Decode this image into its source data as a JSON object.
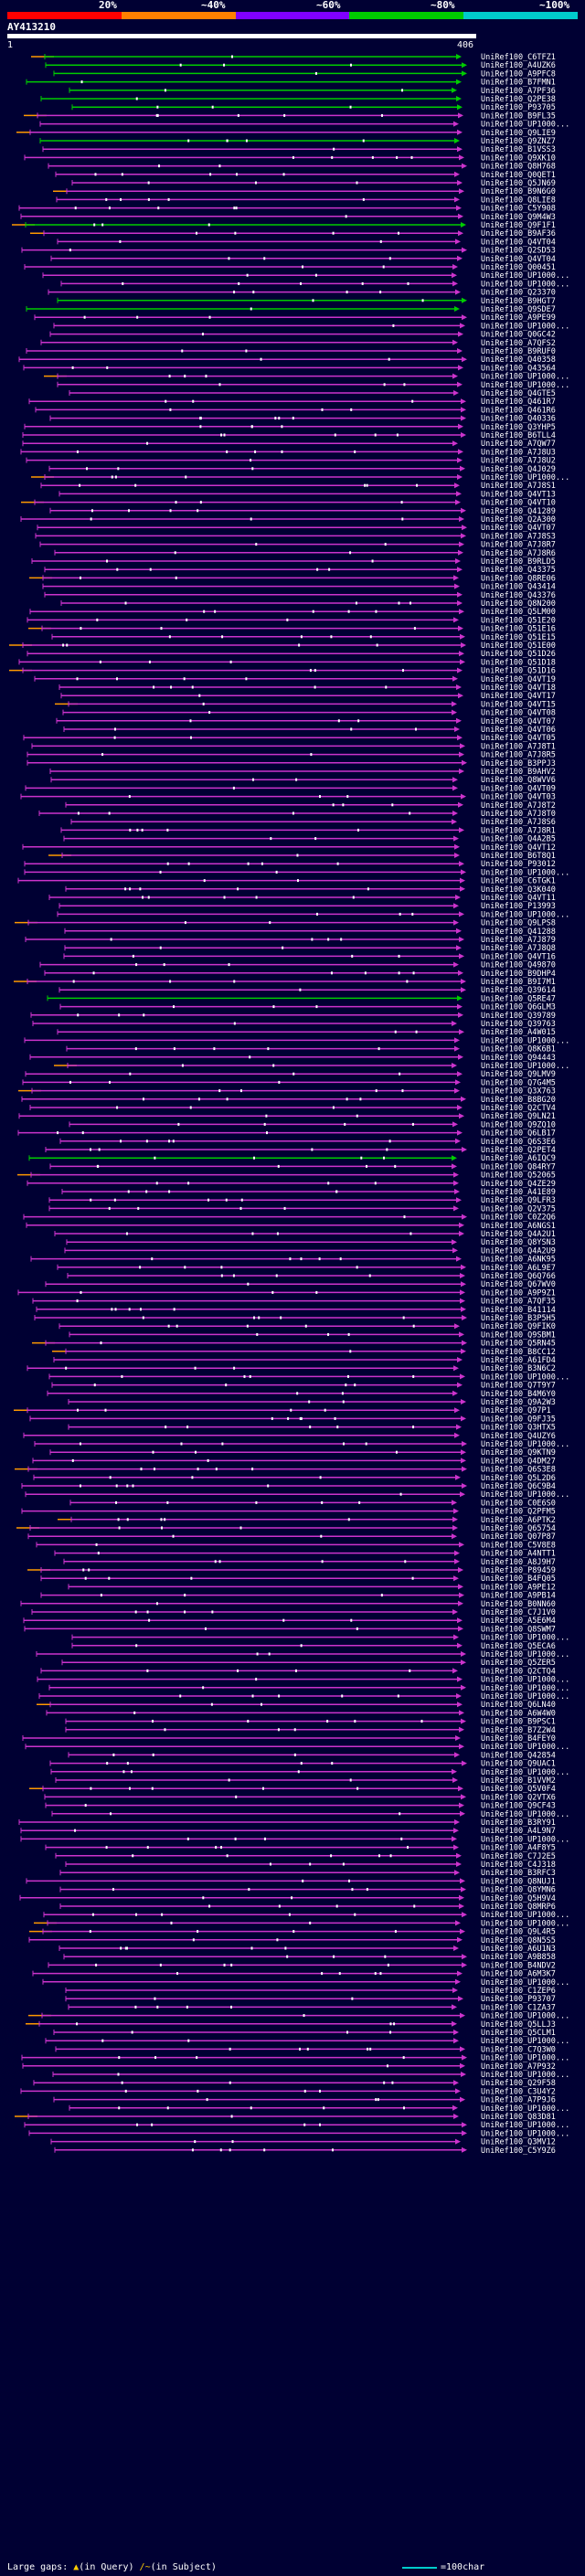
{
  "header": {
    "percent_labels": [
      "20%",
      "~40%",
      "~60%",
      "~80%",
      "~100%"
    ],
    "colors": [
      "#ff0000",
      "#ff8000",
      "#8000ff",
      "#00cc00",
      "#00cccc"
    ],
    "query_title": "AY413210",
    "scale_start": "1",
    "scale_end": "406"
  },
  "legend": {
    "large_gaps": "Large gaps:",
    "in_query": "(in Query)",
    "in_subject": "(in Subject)",
    "scale_note": "=100char"
  },
  "hits": [
    "UniRef100_C6TFZ1",
    "UniRef100_A4UZK6",
    "UniRef100_A9PFC8",
    "UniRef100_B7FMN1",
    "UniRef100_A7PF36",
    "UniRef100_Q2PE38",
    "UniRef100_P93705",
    "UniRef100_B9FL35",
    "UniRef100_UP1000...",
    "UniRef100_Q9LIE9",
    "UniRef100_Q9ZNZ7",
    "UniRef100_B1VSS3",
    "UniRef100_Q9XK10",
    "UniRef100_Q8H768",
    "UniRef100_Q0QET1",
    "UniRef100_Q5JN69",
    "UniRef100_B9N6G0",
    "UniRef100_Q8LIE8",
    "UniRef100_C5Y908",
    "UniRef100_Q9M4W3",
    "UniRef100_Q9F1F1",
    "UniRef100_B9AF36",
    "UniRef100_Q4VT04",
    "UniRef100_Q2SD53",
    "UniRef100_Q4VT04",
    "UniRef100_Q00451",
    "UniRef100_UP1000...",
    "UniRef100_UP1000...",
    "UniRef100_Q23370",
    "UniRef100_B9HGT7",
    "UniRef100_Q9SDE7",
    "UniRef100_A9PE99",
    "UniRef100_UP1000...",
    "UniRef100_Q0GC42",
    "UniRef100_A7QFS2",
    "UniRef100_B9RUF0",
    "UniRef100_Q40358",
    "UniRef100_Q43564",
    "UniRef100_UP1000...",
    "UniRef100_UP1000...",
    "UniRef100_Q4GTE5",
    "UniRef100_Q461R7",
    "UniRef100_Q461R6",
    "UniRef100_Q40336",
    "UniRef100_Q3YHP5",
    "UniRef100_B6TLL4",
    "UniRef100_A7QW77",
    "UniRef100_A7J8U3",
    "UniRef100_A7J8U2",
    "UniRef100_Q4J029",
    "UniRef100_UP1000...",
    "UniRef100_A7J8S1",
    "UniRef100_Q4VT13",
    "UniRef100_Q4VT10",
    "UniRef100_Q41289",
    "UniRef100_Q2A300",
    "UniRef100_Q4VT07",
    "UniRef100_A7J8S3",
    "UniRef100_A7J8R7",
    "UniRef100_A7J8R6",
    "UniRef100_B9RLD5",
    "UniRef100_Q43375",
    "UniRef100_Q8RE06",
    "UniRef100_Q43414",
    "UniRef100_Q43376",
    "UniRef100_Q8N200",
    "UniRef100_Q5LM00",
    "UniRef100_Q51E20",
    "UniRef100_Q51E16",
    "UniRef100_Q51E15",
    "UniRef100_Q51E00",
    "UniRef100_Q51D26",
    "UniRef100_Q51D18",
    "UniRef100_Q51D16",
    "UniRef100_Q4VT19",
    "UniRef100_Q4VT18",
    "UniRef100_Q4VT17",
    "UniRef100_Q4VT15",
    "UniRef100_Q4VT08",
    "UniRef100_Q4VT07",
    "UniRef100_Q4VT06",
    "UniRef100_Q4VT05",
    "UniRef100_A7J8T1",
    "UniRef100_A7J8R5",
    "UniRef100_B3PPJ3",
    "UniRef100_B9AHV2",
    "UniRef100_Q8WVV6",
    "UniRef100_Q4VT09",
    "UniRef100_Q4VT03",
    "UniRef100_A7J8T2",
    "UniRef100_A7J8T0",
    "UniRef100_A7J8S6",
    "UniRef100_A7J8R1",
    "UniRef100_Q4A2B5",
    "UniRef100_Q4VT12",
    "UniRef100_B6T8Q1",
    "UniRef100_P93012",
    "UniRef100_UP1000...",
    "UniRef100_C6TGK1",
    "UniRef100_Q3K040",
    "UniRef100_Q4VT11",
    "UniRef100_P13993",
    "UniRef100_UP1000...",
    "UniRef100_Q9LPS8",
    "UniRef100_Q41288",
    "UniRef100_A7J879",
    "UniRef100_A7J8Q8",
    "UniRef100_Q4VT16",
    "UniRef100_Q49870",
    "UniRef100_B9DHP4",
    "UniRef100_B9I7M1",
    "UniRef100_Q39614",
    "UniRef100_Q5RE47",
    "UniRef100_Q6GLM3",
    "UniRef100_Q39789",
    "UniRef100_Q39763",
    "UniRef100_A4W015",
    "UniRef100_UP1000...",
    "UniRef100_Q8K6B1",
    "UniRef100_Q94443",
    "UniRef100_UP1000...",
    "UniRef100_Q9LMV9",
    "UniRef100_Q7G4M5",
    "UniRef100_Q3X763",
    "UniRef100_B8BG20",
    "UniRef100_Q2CTV4",
    "UniRef100_Q9LN21",
    "UniRef100_Q9ZQ10",
    "UniRef100_Q6LB17",
    "UniRef100_Q6S3E6",
    "UniRef100_Q2PET4",
    "UniRef100_A6IQC9",
    "UniRef100_Q84RY7",
    "UniRef100_Q52065",
    "UniRef100_Q4ZE29",
    "UniRef100_A41E89",
    "UniRef100_Q9LFR3",
    "UniRef100_Q2V375",
    "UniRef100_C0Z2Q6",
    "UniRef100_A6NGS1",
    "UniRef100_Q4A2U1",
    "UniRef100_Q8YSN3",
    "UniRef100_Q4A2U9",
    "UniRef100_A6NK95",
    "UniRef100_A6L9E7",
    "UniRef100_Q6Q766",
    "UniRef100_Q67WV0",
    "UniRef100_A9P9Z1",
    "UniRef100_A7QF35",
    "UniRef100_B41114",
    "UniRef100_B3P5H5",
    "UniRef100_Q9FIK0",
    "UniRef100_Q9SBM1",
    "UniRef100_Q5RN45",
    "UniRef100_B8CC12",
    "UniRef100_A61FD4",
    "UniRef100_B3N6C2",
    "UniRef100_UP1000...",
    "UniRef100_Q7T9Y7",
    "UniRef100_B4M6Y0",
    "UniRef100_Q9A2W3",
    "UniRef100_Q97P1",
    "UniRef100_Q9FJ35",
    "UniRef100_Q3HTX5",
    "UniRef100_Q4UZY6",
    "UniRef100_UP1000...",
    "UniRef100_Q9KTN9",
    "UniRef100_Q4DM27",
    "UniRef100_Q6S3E8",
    "UniRef100_Q5L2D6",
    "UniRef100_Q6C9B4",
    "UniRef100_UP1000...",
    "UniRef100_C0E6S0",
    "UniRef100_Q2PFM5",
    "UniRef100_A6PTK2",
    "UniRef100_Q65754",
    "UniRef100_Q07P87",
    "UniRef100_C5V8E8",
    "UniRef100_A4NTT1",
    "UniRef100_A8J9H7",
    "UniRef100_P89459",
    "UniRef100_B4FQ05",
    "UniRef100_A9PE12",
    "UniRef100_A9PB14",
    "UniRef100_B0NN60",
    "UniRef100_C7J1V0",
    "UniRef100_A5E6M4",
    "UniRef100_Q8SWM7",
    "UniRef100_UP1000...",
    "UniRef100_Q5ECA6",
    "UniRef100_UP1000...",
    "UniRef100_Q5ZER5",
    "UniRef100_Q2CTQ4",
    "UniRef100_UP1000...",
    "UniRef100_UP1000...",
    "UniRef100_UP1000...",
    "UniRef100_Q6LN40",
    "UniRef100_A6W4W0",
    "UniRef100_B9PSC1",
    "UniRef100_B7Z2W4",
    "UniRef100_B4FEY0",
    "UniRef100_UP1000...",
    "UniRef100_Q42854",
    "UniRef100_Q9UAC1",
    "UniRef100_UP1000...",
    "UniRef100_B1VVM2",
    "UniRef100_Q5V0F4",
    "UniRef100_Q2VTX6",
    "UniRef100_Q9CF43",
    "UniRef100_UP1000...",
    "UniRef100_B3RY91",
    "UniRef100_A4L9N7",
    "UniRef100_UP1000...",
    "UniRef100_A4F8Y5",
    "UniRef100_C7J2E5",
    "UniRef100_C4J318",
    "UniRef100_B3RFC3",
    "UniRef100_Q8NUJ1",
    "UniRef100_Q8YMN6",
    "UniRef100_Q5H9V4",
    "UniRef100_Q8MRP6",
    "UniRef100_UP1000...",
    "UniRef100_UP1000...",
    "UniRef100_Q9L4R5",
    "UniRef100_Q8N5S5",
    "UniRef100_A6U1N3",
    "UniRef100_A9B858",
    "UniRef100_B4NDV2",
    "UniRef100_A6M3K7",
    "UniRef100_UP1000...",
    "UniRef100_C1ZEP6",
    "UniRef100_P93707",
    "UniRef100_C1ZA37",
    "UniRef100_UP1000...",
    "UniRef100_Q5LLJ3",
    "UniRef100_Q5CLM1",
    "UniRef100_UP1000...",
    "UniRef100_C7Q3W0",
    "UniRef100_UP1000...",
    "UniRef100_A7P932",
    "UniRef100_UP1000...",
    "UniRef100_Q29F58",
    "UniRef100_C3U4Y2",
    "UniRef100_A7P9J6",
    "UniRef100_UP1000...",
    "UniRef100_Q83D81",
    "UniRef100_UP1000...",
    "UniRef100_UP1000...",
    "UniRef100_Q3MV12",
    "UniRef100_C5Y9Z6"
  ]
}
